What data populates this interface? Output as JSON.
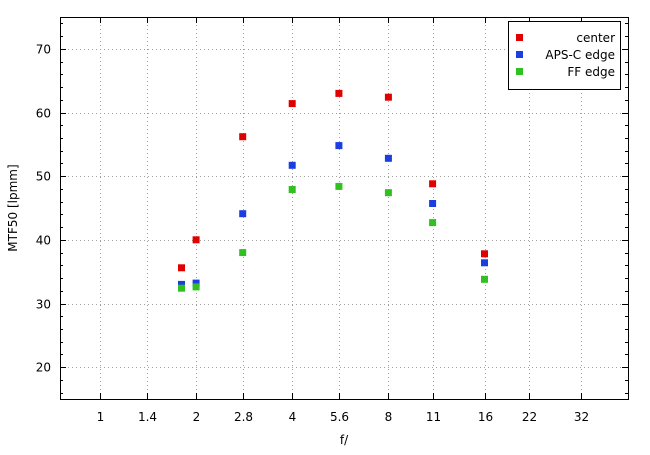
{
  "chart_data": {
    "type": "scatter",
    "xlabel": "f/",
    "ylabel": "MTF50 [lpmm]",
    "x_scale": "log2",
    "xlim": [
      0.75,
      45
    ],
    "ylim": [
      15,
      75
    ],
    "x_ticks": [
      1,
      1.4,
      2,
      2.8,
      4,
      5.6,
      8,
      11,
      16,
      22,
      32
    ],
    "x_tick_labels": [
      "1",
      "1.4",
      "2",
      "2.8",
      "4",
      "5.6",
      "8",
      "11",
      "16",
      "22",
      "32"
    ],
    "y_ticks": [
      20,
      30,
      40,
      50,
      60,
      70
    ],
    "y_tick_labels": [
      "20",
      "30",
      "40",
      "50",
      "60",
      "70"
    ],
    "grid": true,
    "legend_position": "top-right",
    "series": [
      {
        "name": "center",
        "color": "#e00000",
        "x": [
          1.8,
          2,
          2.8,
          4,
          5.6,
          8,
          11,
          16
        ],
        "y": [
          35.6,
          40.0,
          56.2,
          61.4,
          63.0,
          62.4,
          48.8,
          37.8
        ]
      },
      {
        "name": "APS-C edge",
        "color": "#1a3ee0",
        "x": [
          1.8,
          2,
          2.8,
          4,
          5.6,
          8,
          11,
          16
        ],
        "y": [
          33.0,
          33.2,
          44.1,
          51.7,
          54.8,
          52.8,
          45.7,
          36.4
        ]
      },
      {
        "name": "FF edge",
        "color": "#30c020",
        "x": [
          1.8,
          2,
          2.8,
          4,
          5.6,
          8,
          11,
          16
        ],
        "y": [
          32.4,
          32.6,
          38.0,
          47.9,
          48.4,
          47.4,
          42.7,
          33.8
        ]
      }
    ]
  }
}
